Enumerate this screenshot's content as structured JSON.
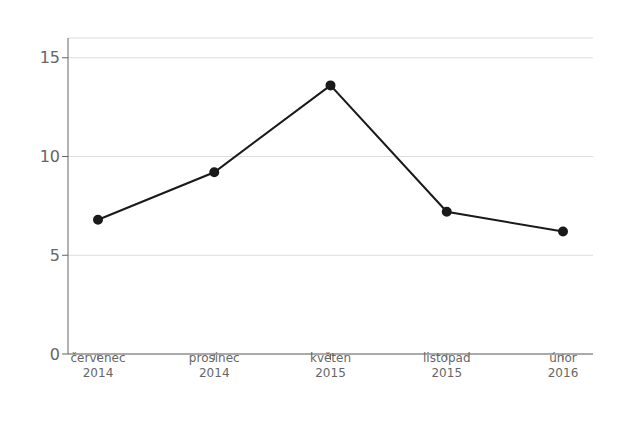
{
  "chart_data": {
    "type": "line",
    "categories": [
      "červenec\n2014",
      "prosinec\n2014",
      "květen\n2015",
      "listopad\n2015",
      "únor\n2016"
    ],
    "values": [
      6.8,
      9.2,
      13.6,
      7.2,
      6.2
    ],
    "ylim": [
      0,
      16
    ],
    "yticks": [
      0,
      5,
      10,
      15
    ],
    "grid": true,
    "color": "#1a1a1a",
    "marker": "circle"
  }
}
